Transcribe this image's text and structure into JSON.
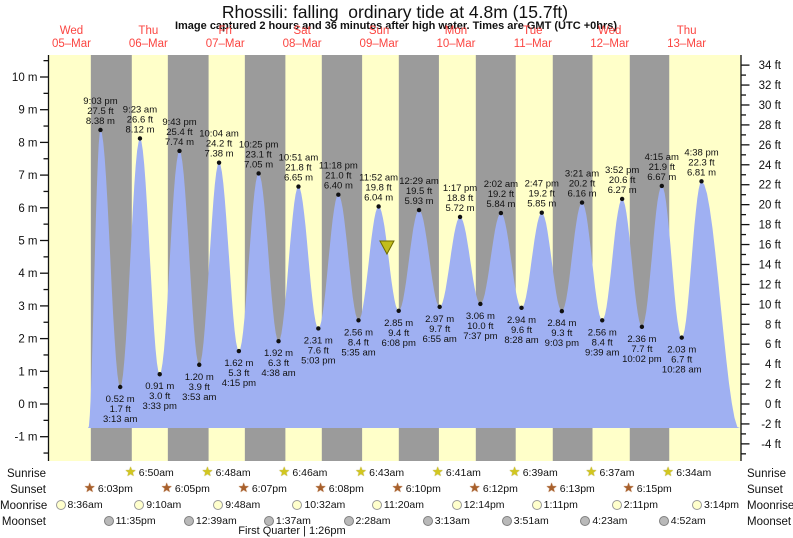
{
  "title": "Rhossili: falling  ordinary tide at 4.8m (15.7ft)",
  "subtitle": "Image captured 2 hours and 36 minutes after high water. Times are GMT (UTC +0hrs)",
  "moon_phase": "First Quarter | 1:26pm",
  "colors": {
    "day_band": "#ffffc9",
    "night_band": "#9b9b9b",
    "tide_fill": "#9fb0f2",
    "day_label": "#fb4541",
    "sunrise_star": "#d2c71f",
    "sunrise_star_edge": "#8a7c00",
    "sunset_star": "#a8602c",
    "moonrise_fill": "#ffffcc",
    "moonrise_edge": "#999999",
    "moonset_fill": "#b9b9b9",
    "moonset_edge": "#7f7f7f",
    "marker_fill": "#c2bd1c",
    "marker_edge": "#6f6b00",
    "axis": "#111111"
  },
  "chart_data": {
    "type": "area",
    "title": "Rhossili: falling  ordinary tide at 4.8m (15.7ft)",
    "subtitle": "Image captured 2 hours and 36 minutes after high water. Times are GMT (UTC +0hrs)",
    "days": [
      {
        "weekday": "Wed",
        "date": "05–Mar"
      },
      {
        "weekday": "Thu",
        "date": "06–Mar"
      },
      {
        "weekday": "Fri",
        "date": "07–Mar"
      },
      {
        "weekday": "Sat",
        "date": "08–Mar"
      },
      {
        "weekday": "Sun",
        "date": "09–Mar"
      },
      {
        "weekday": "Mon",
        "date": "10–Mar"
      },
      {
        "weekday": "Tue",
        "date": "11–Mar"
      },
      {
        "weekday": "Wed",
        "date": "12–Mar"
      },
      {
        "weekday": "Thu",
        "date": "13–Mar"
      }
    ],
    "y_left": {
      "unit": "m",
      "min": -1,
      "max": 10,
      "step": 1
    },
    "y_right": {
      "unit": "ft",
      "min": -4,
      "max": 34,
      "step": 2
    },
    "high_tides": [
      {
        "day": 0,
        "time": "9:03 pm",
        "ft": "27.5 ft",
        "m": "8.38 m",
        "height_m": 8.38
      },
      {
        "day": 1,
        "time": "9:23 am",
        "ft": "26.6 ft",
        "m": "8.12 m",
        "height_m": 8.12
      },
      {
        "day": 1,
        "time": "9:43 pm",
        "ft": "25.4 ft",
        "m": "7.74 m",
        "height_m": 7.74
      },
      {
        "day": 2,
        "time": "10:04 am",
        "ft": "24.2 ft",
        "m": "7.38 m",
        "height_m": 7.38
      },
      {
        "day": 2,
        "time": "10:25 pm",
        "ft": "23.1 ft",
        "m": "7.05 m",
        "height_m": 7.05
      },
      {
        "day": 3,
        "time": "10:51 am",
        "ft": "21.8 ft",
        "m": "6.65 m",
        "height_m": 6.65
      },
      {
        "day": 3,
        "time": "11:18 pm",
        "ft": "21.0 ft",
        "m": "6.40 m",
        "height_m": 6.4
      },
      {
        "day": 4,
        "time": "11:52 am",
        "ft": "19.8 ft",
        "m": "6.04 m",
        "height_m": 6.04
      },
      {
        "day": 5,
        "time": "12:29 am",
        "ft": "19.5 ft",
        "m": "5.93 m",
        "height_m": 5.93
      },
      {
        "day": 5,
        "time": "1:17 pm",
        "ft": "18.8 ft",
        "m": "5.72 m",
        "height_m": 5.72
      },
      {
        "day": 6,
        "time": "2:02 am",
        "ft": "19.2 ft",
        "m": "5.84 m",
        "height_m": 5.84
      },
      {
        "day": 6,
        "time": "2:47 pm",
        "ft": "19.2 ft",
        "m": "5.85 m",
        "height_m": 5.85
      },
      {
        "day": 7,
        "time": "3:21 am",
        "ft": "20.2 ft",
        "m": "6.16 m",
        "height_m": 6.16
      },
      {
        "day": 7,
        "time": "3:52 pm",
        "ft": "20.6 ft",
        "m": "6.27 m",
        "height_m": 6.27
      },
      {
        "day": 8,
        "time": "4:15 am",
        "ft": "21.9 ft",
        "m": "6.67 m",
        "height_m": 6.67
      },
      {
        "day": 8,
        "time": "4:38 pm",
        "ft": "22.3 ft",
        "m": "6.81 m",
        "height_m": 6.81
      }
    ],
    "low_tides": [
      {
        "day": 1,
        "time": "3:13 am",
        "ft": "1.7 ft",
        "m": "0.52 m",
        "height_m": 0.52
      },
      {
        "day": 1,
        "time": "3:33 pm",
        "ft": "3.0 ft",
        "m": "0.91 m",
        "height_m": 0.91
      },
      {
        "day": 2,
        "time": "3:53 am",
        "ft": "3.9 ft",
        "m": "1.20 m",
        "height_m": 1.2
      },
      {
        "day": 2,
        "time": "4:15 pm",
        "ft": "5.3 ft",
        "m": "1.62 m",
        "height_m": 1.62
      },
      {
        "day": 3,
        "time": "4:38 am",
        "ft": "6.3 ft",
        "m": "1.92 m",
        "height_m": 1.92
      },
      {
        "day": 3,
        "time": "5:03 pm",
        "ft": "7.6 ft",
        "m": "2.31 m",
        "height_m": 2.31
      },
      {
        "day": 4,
        "time": "5:35 am",
        "ft": "8.4 ft",
        "m": "2.56 m",
        "height_m": 2.56
      },
      {
        "day": 4,
        "time": "6:08 pm",
        "ft": "9.4 ft",
        "m": "2.85 m",
        "height_m": 2.85
      },
      {
        "day": 5,
        "time": "6:55 am",
        "ft": "9.7 ft",
        "m": "2.97 m",
        "height_m": 2.97
      },
      {
        "day": 5,
        "time": "7:37 pm",
        "ft": "10.0 ft",
        "m": "3.06 m",
        "height_m": 3.06
      },
      {
        "day": 6,
        "time": "8:28 am",
        "ft": "9.6 ft",
        "m": "2.94 m",
        "height_m": 2.94
      },
      {
        "day": 6,
        "time": "9:03 pm",
        "ft": "9.3 ft",
        "m": "2.84 m",
        "height_m": 2.84
      },
      {
        "day": 7,
        "time": "9:39 am",
        "ft": "8.4 ft",
        "m": "2.56 m",
        "height_m": 2.56
      },
      {
        "day": 7,
        "time": "10:02 pm",
        "ft": "7.7 ft",
        "m": "2.36 m",
        "height_m": 2.36
      },
      {
        "day": 8,
        "time": "10:28 am",
        "ft": "6.7 ft",
        "m": "2.03 m",
        "height_m": 2.03
      }
    ],
    "current_marker": {
      "day": 4,
      "time": "2:28 pm",
      "height_m": 4.8,
      "height_ft": 15.7
    }
  },
  "astro": {
    "rows": [
      {
        "label": "Sunrise",
        "icon": "sunrise-star",
        "entries": [
          {
            "day": 1,
            "time": "6:50am"
          },
          {
            "day": 2,
            "time": "6:48am"
          },
          {
            "day": 3,
            "time": "6:46am"
          },
          {
            "day": 4,
            "time": "6:43am"
          },
          {
            "day": 5,
            "time": "6:41am"
          },
          {
            "day": 6,
            "time": "6:39am"
          },
          {
            "day": 7,
            "time": "6:37am"
          },
          {
            "day": 8,
            "time": "6:34am"
          }
        ]
      },
      {
        "label": "Sunset",
        "icon": "sunset-star",
        "entries": [
          {
            "day": 0,
            "time": "6:03pm"
          },
          {
            "day": 1,
            "time": "6:05pm"
          },
          {
            "day": 2,
            "time": "6:07pm"
          },
          {
            "day": 3,
            "time": "6:08pm"
          },
          {
            "day": 4,
            "time": "6:10pm"
          },
          {
            "day": 5,
            "time": "6:12pm"
          },
          {
            "day": 6,
            "time": "6:13pm"
          },
          {
            "day": 7,
            "time": "6:15pm"
          }
        ]
      },
      {
        "label": "Moonrise",
        "icon": "moonrise-circle",
        "entries": [
          {
            "day": 0,
            "time": "8:36am"
          },
          {
            "day": 1,
            "time": "9:10am"
          },
          {
            "day": 2,
            "time": "9:48am"
          },
          {
            "day": 3,
            "time": "10:32am"
          },
          {
            "day": 4,
            "time": "11:20am"
          },
          {
            "day": 5,
            "time": "12:14pm"
          },
          {
            "day": 6,
            "time": "1:11pm"
          },
          {
            "day": 7,
            "time": "2:11pm"
          },
          {
            "day": 8,
            "time": "3:14pm"
          }
        ]
      },
      {
        "label": "Moonset",
        "icon": "moonset-circle",
        "entries": [
          {
            "day": 0,
            "time": "11:35pm"
          },
          {
            "day": 2,
            "time": "12:39am"
          },
          {
            "day": 3,
            "time": "1:37am"
          },
          {
            "day": 4,
            "time": "2:28am"
          },
          {
            "day": 5,
            "time": "3:13am"
          },
          {
            "day": 6,
            "time": "3:51am"
          },
          {
            "day": 7,
            "time": "4:23am"
          },
          {
            "day": 8,
            "time": "4:52am"
          }
        ]
      }
    ]
  }
}
